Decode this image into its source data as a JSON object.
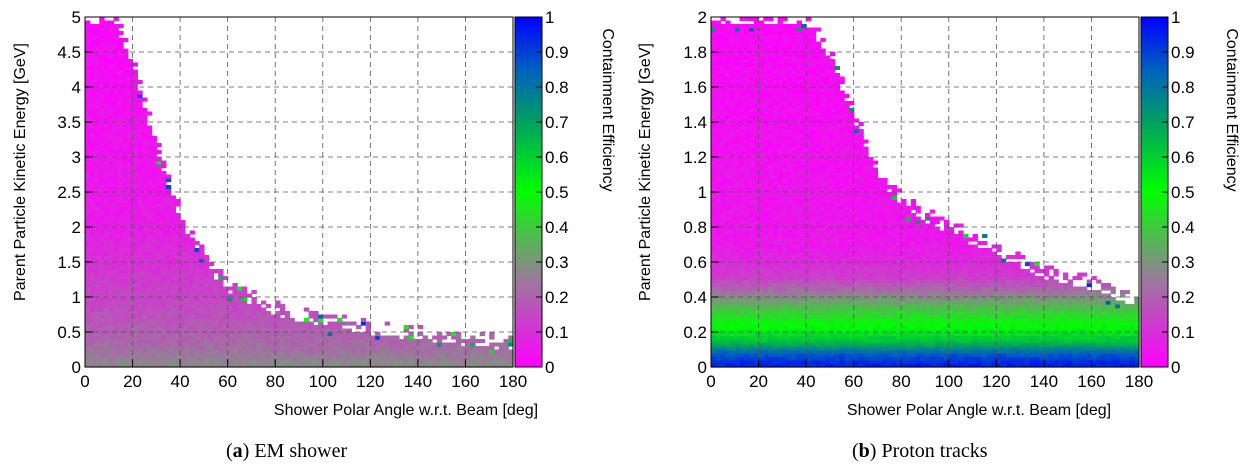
{
  "chart_data": [
    {
      "type": "heatmap",
      "panel_tag": "a",
      "caption": "EM shower",
      "xlabel": "Shower Polar Angle w.r.t. Beam [deg]",
      "ylabel": "Parent Particle Kinetic Energy [GeV]",
      "zlabel": "Containment Efficiency",
      "xlim": [
        0,
        180
      ],
      "ylim": [
        0,
        5
      ],
      "zlim": [
        0,
        1
      ],
      "x_ticks": [
        "0",
        "20",
        "40",
        "60",
        "80",
        "100",
        "120",
        "140",
        "160",
        "180"
      ],
      "y_ticks": [
        "0",
        "0.5",
        "1",
        "1.5",
        "2",
        "2.5",
        "3",
        "3.5",
        "4",
        "4.5",
        "5"
      ],
      "z_ticks": [
        "0",
        "0.1",
        "0.2",
        "0.3",
        "0.4",
        "0.5",
        "0.6",
        "0.7",
        "0.8",
        "0.9",
        "1"
      ],
      "grid": true,
      "colormap": [
        "#ff00ff",
        "#9a7a9a",
        "#00ff00",
        "#0000ff"
      ],
      "filled_region_upper_energy": [
        {
          "angle": 0,
          "energy": 5.0
        },
        {
          "angle": 12,
          "energy": 5.0
        },
        {
          "angle": 20,
          "energy": 4.4
        },
        {
          "angle": 30,
          "energy": 3.2
        },
        {
          "angle": 40,
          "energy": 2.2
        },
        {
          "angle": 50,
          "energy": 1.6
        },
        {
          "angle": 60,
          "energy": 1.15
        },
        {
          "angle": 70,
          "energy": 1.0
        },
        {
          "angle": 80,
          "energy": 0.85
        },
        {
          "angle": 100,
          "energy": 0.68
        },
        {
          "angle": 120,
          "energy": 0.56
        },
        {
          "angle": 140,
          "energy": 0.48
        },
        {
          "angle": 160,
          "energy": 0.42
        },
        {
          "angle": 180,
          "energy": 0.35
        }
      ],
      "efficiency_by_energy": [
        {
          "energy": 0.05,
          "efficiency": 0.28
        },
        {
          "energy": 0.3,
          "efficiency": 0.22
        },
        {
          "energy": 0.8,
          "efficiency": 0.16
        },
        {
          "energy": 2.0,
          "efficiency": 0.06
        },
        {
          "energy": 5.0,
          "efficiency": 0.02
        }
      ]
    },
    {
      "type": "heatmap",
      "panel_tag": "b",
      "caption": "Proton tracks",
      "xlabel": "Shower Polar Angle w.r.t. Beam [deg]",
      "ylabel": "Parent Particle Kinetic Energy [GeV]",
      "zlabel": "Containment Efficiency",
      "xlim": [
        0,
        180
      ],
      "ylim": [
        0,
        2
      ],
      "zlim": [
        0,
        1
      ],
      "x_ticks": [
        "0",
        "20",
        "40",
        "60",
        "80",
        "100",
        "120",
        "140",
        "160",
        "180"
      ],
      "y_ticks": [
        "0",
        "0.2",
        "0.4",
        "0.6",
        "0.8",
        "1",
        "1.2",
        "1.4",
        "1.6",
        "1.8",
        "2"
      ],
      "z_ticks": [
        "0",
        "0.1",
        "0.2",
        "0.3",
        "0.4",
        "0.5",
        "0.6",
        "0.7",
        "0.8",
        "0.9",
        "1"
      ],
      "grid": true,
      "colormap": [
        "#ff00ff",
        "#9a7a9a",
        "#00ff00",
        "#0000ff"
      ],
      "filled_region_upper_energy": [
        {
          "angle": 0,
          "energy": 2.0
        },
        {
          "angle": 40,
          "energy": 2.0
        },
        {
          "angle": 50,
          "energy": 1.8
        },
        {
          "angle": 60,
          "energy": 1.45
        },
        {
          "angle": 70,
          "energy": 1.15
        },
        {
          "angle": 80,
          "energy": 0.95
        },
        {
          "angle": 100,
          "energy": 0.8
        },
        {
          "angle": 120,
          "energy": 0.68
        },
        {
          "angle": 140,
          "energy": 0.55
        },
        {
          "angle": 160,
          "energy": 0.48
        },
        {
          "angle": 180,
          "energy": 0.38
        }
      ],
      "efficiency_by_energy": [
        {
          "energy": 0.02,
          "efficiency": 0.95
        },
        {
          "energy": 0.08,
          "efficiency": 0.85
        },
        {
          "energy": 0.14,
          "efficiency": 0.65
        },
        {
          "energy": 0.2,
          "efficiency": 0.55
        },
        {
          "energy": 0.28,
          "efficiency": 0.45
        },
        {
          "energy": 0.36,
          "efficiency": 0.35
        },
        {
          "energy": 0.44,
          "efficiency": 0.22
        },
        {
          "energy": 0.52,
          "efficiency": 0.12
        },
        {
          "energy": 0.7,
          "efficiency": 0.05
        },
        {
          "energy": 2.0,
          "efficiency": 0.02
        }
      ]
    }
  ]
}
